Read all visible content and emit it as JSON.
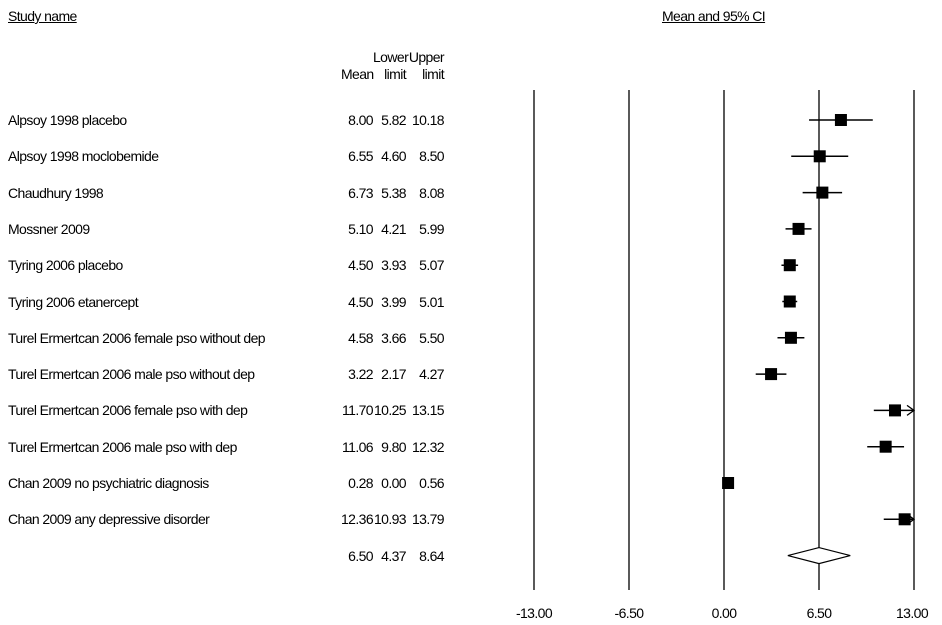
{
  "headers": {
    "study_name": "Study name",
    "ci_title": "Mean and 95% CI",
    "lower_top": "Lower",
    "upper_top": "Upper",
    "mean": "Mean",
    "lower_bottom": "limit",
    "upper_bottom": "limit"
  },
  "chart_data": {
    "type": "forest",
    "x_ticks": [
      "-13.00",
      "-6.50",
      "0.00",
      "6.50",
      "13.00"
    ],
    "xlim": [
      -13,
      13
    ],
    "studies": [
      {
        "name": "Alpsoy 1998 placebo",
        "mean": "8.00",
        "lower": "5.82",
        "upper": "10.18",
        "m": 8.0,
        "lo": 5.82,
        "hi": 10.18
      },
      {
        "name": "Alpsoy 1998 moclobemide",
        "mean": "6.55",
        "lower": "4.60",
        "upper": "8.50",
        "m": 6.55,
        "lo": 4.6,
        "hi": 8.5
      },
      {
        "name": "Chaudhury 1998",
        "mean": "6.73",
        "lower": "5.38",
        "upper": "8.08",
        "m": 6.73,
        "lo": 5.38,
        "hi": 8.08
      },
      {
        "name": "Mossner 2009",
        "mean": "5.10",
        "lower": "4.21",
        "upper": "5.99",
        "m": 5.1,
        "lo": 4.21,
        "hi": 5.99
      },
      {
        "name": "Tyring 2006 placebo",
        "mean": "4.50",
        "lower": "3.93",
        "upper": "5.07",
        "m": 4.5,
        "lo": 3.93,
        "hi": 5.07
      },
      {
        "name": "Tyring 2006 etanercept",
        "mean": "4.50",
        "lower": "3.99",
        "upper": "5.01",
        "m": 4.5,
        "lo": 3.99,
        "hi": 5.01
      },
      {
        "name": "Turel Ermertcan 2006 female pso without dep",
        "mean": "4.58",
        "lower": "3.66",
        "upper": "5.50",
        "m": 4.58,
        "lo": 3.66,
        "hi": 5.5
      },
      {
        "name": "Turel Ermertcan 2006 male pso without dep",
        "mean": "3.22",
        "lower": "2.17",
        "upper": "4.27",
        "m": 3.22,
        "lo": 2.17,
        "hi": 4.27
      },
      {
        "name": "Turel Ermertcan 2006 female pso with dep",
        "mean": "11.70",
        "lower": "10.25",
        "upper": "13.15",
        "m": 11.7,
        "lo": 10.25,
        "hi": 13.15
      },
      {
        "name": "Turel Ermertcan 2006 male pso with dep",
        "mean": "11.06",
        "lower": "9.80",
        "upper": "12.32",
        "m": 11.06,
        "lo": 9.8,
        "hi": 12.32
      },
      {
        "name": "Chan 2009 no psychiatric diagnosis",
        "mean": "0.28",
        "lower": "0.00",
        "upper": "0.56",
        "m": 0.28,
        "lo": 0.0,
        "hi": 0.56
      },
      {
        "name": "Chan 2009 any depressive disorder",
        "mean": "12.36",
        "lower": "10.93",
        "upper": "13.79",
        "m": 12.36,
        "lo": 10.93,
        "hi": 13.79
      }
    ],
    "summary": {
      "mean": "6.50",
      "lower": "4.37",
      "upper": "8.64",
      "m": 6.5,
      "lo": 4.37,
      "hi": 8.64
    }
  }
}
